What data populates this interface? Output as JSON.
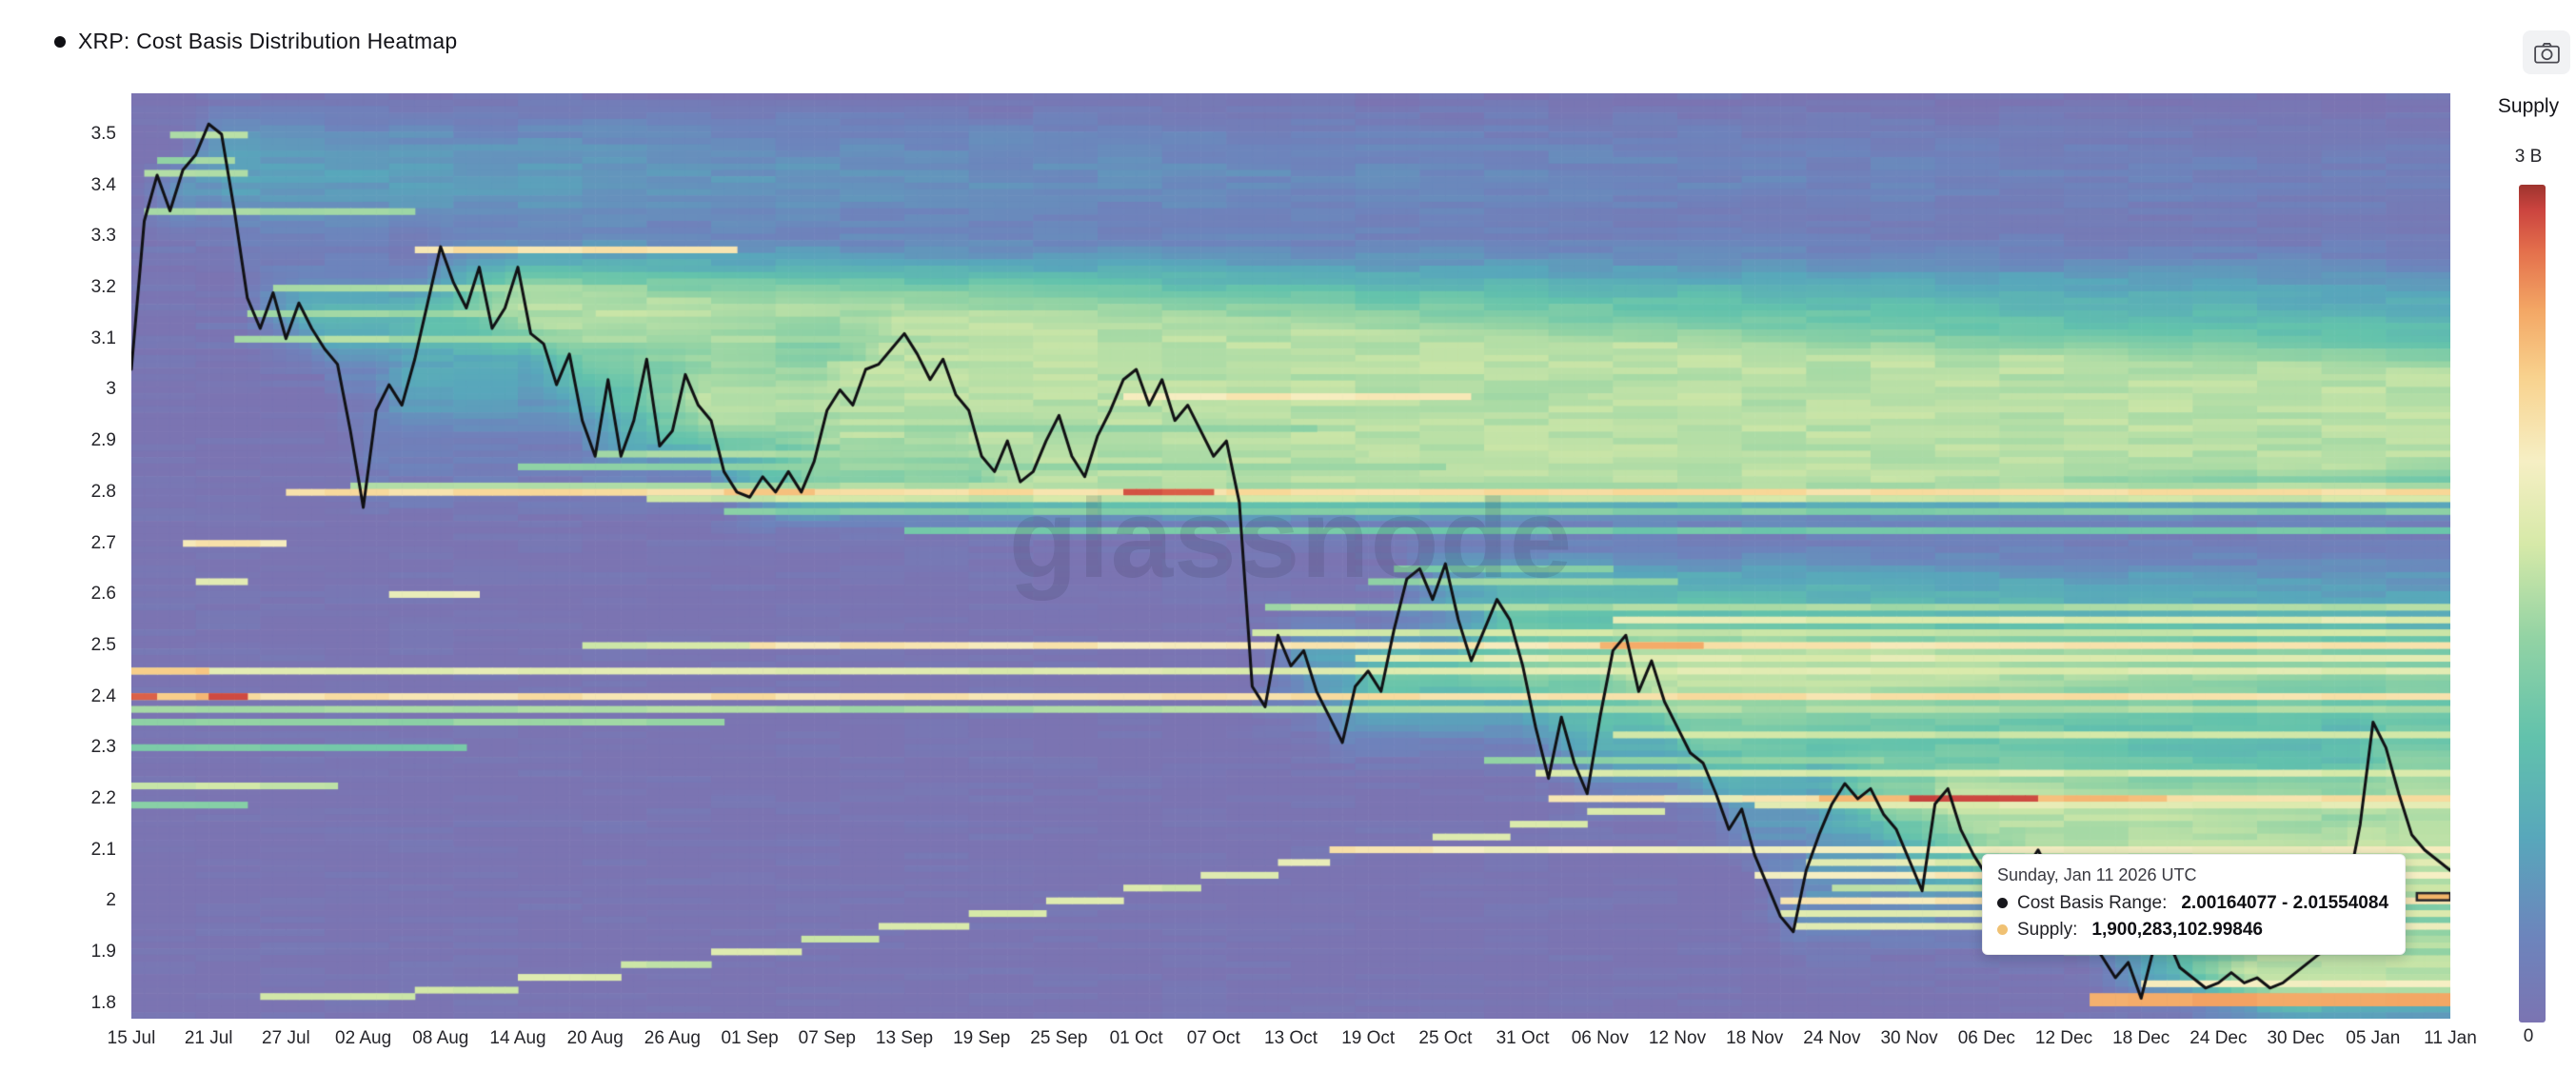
{
  "header": {
    "title": "XRP: Cost Basis Distribution Heatmap"
  },
  "icons": {
    "series_bullet": "●",
    "camera": "camera-icon",
    "cost_basis_bullet": "●",
    "supply_bullet": "●"
  },
  "legend": {
    "title": "Supply",
    "max_label": "3 B",
    "min_label": "0"
  },
  "tooltip": {
    "date": "Sunday, Jan 11 2026 UTC",
    "cost_basis_label": "Cost Basis Range:",
    "cost_basis_value": "2.00164077 - 2.01554084",
    "supply_label": "Supply:",
    "supply_value": "1,900,283,102.99846",
    "cost_dot_color": "#17171c",
    "supply_dot_color": "#f0c173"
  },
  "chart_data": {
    "type": "heatmap",
    "title": "XRP: Cost Basis Distribution Heatmap",
    "watermark": "glassnode",
    "xlabel": "",
    "ylabel": "",
    "legend_position": "right",
    "x_range_days": 180,
    "y_range": [
      1.77,
      3.58
    ],
    "x_ticks": [
      "15 Jul",
      "21 Jul",
      "27 Jul",
      "02 Aug",
      "08 Aug",
      "14 Aug",
      "20 Aug",
      "26 Aug",
      "01 Sep",
      "07 Sep",
      "13 Sep",
      "19 Sep",
      "25 Sep",
      "01 Oct",
      "07 Oct",
      "13 Oct",
      "19 Oct",
      "25 Oct",
      "31 Oct",
      "06 Nov",
      "12 Nov",
      "18 Nov",
      "24 Nov",
      "30 Nov",
      "06 Dec",
      "12 Dec",
      "18 Dec",
      "24 Dec",
      "30 Dec",
      "05 Jan",
      "11 Jan"
    ],
    "x_tick_interval_days": 6,
    "y_ticks": [
      "3.5",
      "3.4",
      "3.3",
      "3.2",
      "3.1",
      "3",
      "2.9",
      "2.8",
      "2.7",
      "2.6",
      "2.5",
      "2.4",
      "2.3",
      "2.2",
      "2.1",
      "2",
      "1.9",
      "1.8"
    ],
    "supply_scale_max": "3 B",
    "supply_scale_min": "0",
    "base_color": "#7b74b2",
    "colormap": [
      {
        "v": 0.0,
        "c": "#7b74b2"
      },
      {
        "v": 0.1,
        "c": "#6d84bc"
      },
      {
        "v": 0.22,
        "c": "#58a7bb"
      },
      {
        "v": 0.34,
        "c": "#62c2ac"
      },
      {
        "v": 0.46,
        "c": "#93d3a4"
      },
      {
        "v": 0.57,
        "c": "#d6e9a8"
      },
      {
        "v": 0.67,
        "c": "#f6efc4"
      },
      {
        "v": 0.77,
        "c": "#f8d28e"
      },
      {
        "v": 0.85,
        "c": "#f3a765"
      },
      {
        "v": 0.92,
        "c": "#e4704c"
      },
      {
        "v": 0.97,
        "c": "#cb443f"
      },
      {
        "v": 1.0,
        "c": "#9e342e"
      }
    ],
    "cloud": {
      "sigma": 0.045,
      "per_day": 0.05,
      "cap": 0.52,
      "decay": 0.994,
      "noise": 0.06
    },
    "price_line": {
      "name": "XRP price",
      "color": "#111114",
      "points": [
        [
          0,
          3.04
        ],
        [
          1,
          3.33
        ],
        [
          2,
          3.42
        ],
        [
          3,
          3.35
        ],
        [
          4,
          3.43
        ],
        [
          5,
          3.46
        ],
        [
          6,
          3.52
        ],
        [
          7,
          3.5
        ],
        [
          8,
          3.35
        ],
        [
          9,
          3.18
        ],
        [
          10,
          3.12
        ],
        [
          11,
          3.19
        ],
        [
          12,
          3.1
        ],
        [
          13,
          3.17
        ],
        [
          14,
          3.12
        ],
        [
          15,
          3.08
        ],
        [
          16,
          3.05
        ],
        [
          17,
          2.92
        ],
        [
          18,
          2.77
        ],
        [
          19,
          2.96
        ],
        [
          20,
          3.01
        ],
        [
          21,
          2.97
        ],
        [
          22,
          3.06
        ],
        [
          23,
          3.17
        ],
        [
          24,
          3.28
        ],
        [
          25,
          3.21
        ],
        [
          26,
          3.16
        ],
        [
          27,
          3.24
        ],
        [
          28,
          3.12
        ],
        [
          29,
          3.16
        ],
        [
          30,
          3.24
        ],
        [
          31,
          3.11
        ],
        [
          32,
          3.09
        ],
        [
          33,
          3.01
        ],
        [
          34,
          3.07
        ],
        [
          35,
          2.94
        ],
        [
          36,
          2.87
        ],
        [
          37,
          3.02
        ],
        [
          38,
          2.87
        ],
        [
          39,
          2.94
        ],
        [
          40,
          3.06
        ],
        [
          41,
          2.89
        ],
        [
          42,
          2.92
        ],
        [
          43,
          3.03
        ],
        [
          44,
          2.97
        ],
        [
          45,
          2.94
        ],
        [
          46,
          2.84
        ],
        [
          47,
          2.8
        ],
        [
          48,
          2.79
        ],
        [
          49,
          2.83
        ],
        [
          50,
          2.8
        ],
        [
          51,
          2.84
        ],
        [
          52,
          2.8
        ],
        [
          53,
          2.86
        ],
        [
          54,
          2.96
        ],
        [
          55,
          3.0
        ],
        [
          56,
          2.97
        ],
        [
          57,
          3.04
        ],
        [
          58,
          3.05
        ],
        [
          59,
          3.08
        ],
        [
          60,
          3.11
        ],
        [
          61,
          3.07
        ],
        [
          62,
          3.02
        ],
        [
          63,
          3.06
        ],
        [
          64,
          2.99
        ],
        [
          65,
          2.96
        ],
        [
          66,
          2.87
        ],
        [
          67,
          2.84
        ],
        [
          68,
          2.9
        ],
        [
          69,
          2.82
        ],
        [
          70,
          2.84
        ],
        [
          71,
          2.9
        ],
        [
          72,
          2.95
        ],
        [
          73,
          2.87
        ],
        [
          74,
          2.83
        ],
        [
          75,
          2.91
        ],
        [
          76,
          2.96
        ],
        [
          77,
          3.02
        ],
        [
          78,
          3.04
        ],
        [
          79,
          2.97
        ],
        [
          80,
          3.02
        ],
        [
          81,
          2.94
        ],
        [
          82,
          2.97
        ],
        [
          83,
          2.92
        ],
        [
          84,
          2.87
        ],
        [
          85,
          2.9
        ],
        [
          86,
          2.78
        ],
        [
          87,
          2.42
        ],
        [
          88,
          2.38
        ],
        [
          89,
          2.52
        ],
        [
          90,
          2.46
        ],
        [
          91,
          2.49
        ],
        [
          92,
          2.41
        ],
        [
          93,
          2.36
        ],
        [
          94,
          2.31
        ],
        [
          95,
          2.42
        ],
        [
          96,
          2.45
        ],
        [
          97,
          2.41
        ],
        [
          98,
          2.53
        ],
        [
          99,
          2.63
        ],
        [
          100,
          2.65
        ],
        [
          101,
          2.59
        ],
        [
          102,
          2.66
        ],
        [
          103,
          2.55
        ],
        [
          104,
          2.47
        ],
        [
          105,
          2.53
        ],
        [
          106,
          2.59
        ],
        [
          107,
          2.55
        ],
        [
          108,
          2.46
        ],
        [
          109,
          2.34
        ],
        [
          110,
          2.24
        ],
        [
          111,
          2.36
        ],
        [
          112,
          2.27
        ],
        [
          113,
          2.21
        ],
        [
          114,
          2.36
        ],
        [
          115,
          2.49
        ],
        [
          116,
          2.52
        ],
        [
          117,
          2.41
        ],
        [
          118,
          2.47
        ],
        [
          119,
          2.39
        ],
        [
          120,
          2.34
        ],
        [
          121,
          2.29
        ],
        [
          122,
          2.27
        ],
        [
          123,
          2.21
        ],
        [
          124,
          2.14
        ],
        [
          125,
          2.18
        ],
        [
          126,
          2.09
        ],
        [
          127,
          2.03
        ],
        [
          128,
          1.97
        ],
        [
          129,
          1.94
        ],
        [
          130,
          2.06
        ],
        [
          131,
          2.13
        ],
        [
          132,
          2.19
        ],
        [
          133,
          2.23
        ],
        [
          134,
          2.2
        ],
        [
          135,
          2.22
        ],
        [
          136,
          2.17
        ],
        [
          137,
          2.14
        ],
        [
          138,
          2.08
        ],
        [
          139,
          2.02
        ],
        [
          140,
          2.19
        ],
        [
          141,
          2.22
        ],
        [
          142,
          2.14
        ],
        [
          143,
          2.09
        ],
        [
          144,
          2.05
        ],
        [
          145,
          2.08
        ],
        [
          146,
          2.02
        ],
        [
          147,
          2.06
        ],
        [
          148,
          2.1
        ],
        [
          149,
          2.05
        ],
        [
          150,
          2.01
        ],
        [
          151,
          1.97
        ],
        [
          152,
          1.93
        ],
        [
          153,
          1.89
        ],
        [
          154,
          1.85
        ],
        [
          155,
          1.88
        ],
        [
          156,
          1.81
        ],
        [
          157,
          1.91
        ],
        [
          158,
          1.93
        ],
        [
          159,
          1.87
        ],
        [
          160,
          1.85
        ],
        [
          161,
          1.83
        ],
        [
          162,
          1.84
        ],
        [
          163,
          1.86
        ],
        [
          164,
          1.84
        ],
        [
          165,
          1.85
        ],
        [
          166,
          1.83
        ],
        [
          167,
          1.84
        ],
        [
          168,
          1.86
        ],
        [
          169,
          1.88
        ],
        [
          170,
          1.9
        ],
        [
          171,
          1.95
        ],
        [
          172,
          2.02
        ],
        [
          173,
          2.15
        ],
        [
          174,
          2.35
        ],
        [
          175,
          2.3
        ],
        [
          176,
          2.21
        ],
        [
          177,
          2.13
        ],
        [
          178,
          2.1
        ],
        [
          179,
          2.08
        ],
        [
          180,
          2.06
        ]
      ]
    },
    "bands": [
      {
        "p": 3.5,
        "d0": 3,
        "d1": 9,
        "v": 0.5
      },
      {
        "p": 3.45,
        "d0": 2,
        "d1": 8,
        "v": 0.48
      },
      {
        "p": 3.425,
        "d0": 1,
        "d1": 9,
        "v": 0.52
      },
      {
        "p": 3.35,
        "d0": 1,
        "d1": 22,
        "v": 0.48
      },
      {
        "p": 3.27,
        "d0": 22,
        "d1": 47,
        "v": 0.72
      },
      {
        "p": 3.2,
        "d0": 11,
        "d1": 40,
        "v": 0.5
      },
      {
        "p": 3.15,
        "d0": 9,
        "d1": 36,
        "v": 0.48
      },
      {
        "p": 3.1,
        "d0": 8,
        "d1": 62,
        "v": 0.5
      },
      {
        "p": 3.05,
        "d0": 54,
        "d1": 66,
        "v": 0.52
      },
      {
        "p": 2.99,
        "d0": 77,
        "d1": 104,
        "v": 0.7
      },
      {
        "p": 2.99,
        "d0": 104,
        "d1": 113,
        "v": 0.5
      },
      {
        "p": 2.95,
        "d0": 49,
        "d1": 82,
        "v": 0.5
      },
      {
        "p": 2.925,
        "d0": 53,
        "d1": 92,
        "v": 0.46
      },
      {
        "p": 2.875,
        "d0": 36,
        "d1": 96,
        "v": 0.5
      },
      {
        "p": 2.85,
        "d0": 30,
        "d1": 102,
        "v": 0.46
      },
      {
        "p": 2.8125,
        "d0": 17,
        "d1": 181,
        "v": 0.5
      },
      {
        "p": 2.8,
        "d0": 12,
        "d1": 181,
        "v": 0.73
      },
      {
        "p": 2.8,
        "d0": 46,
        "d1": 53,
        "v": 0.8
      },
      {
        "p": 2.8,
        "d0": 77,
        "d1": 84,
        "v": 0.96
      },
      {
        "p": 2.7875,
        "d0": 40,
        "d1": 181,
        "v": 0.55
      },
      {
        "p": 2.765,
        "d0": 46,
        "d1": 181,
        "v": 0.42
      },
      {
        "p": 2.725,
        "d0": 60,
        "d1": 181,
        "v": 0.38
      },
      {
        "p": 2.7,
        "d0": 4,
        "d1": 12,
        "v": 0.7
      },
      {
        "p": 2.63,
        "d0": 5,
        "d1": 9,
        "v": 0.62
      },
      {
        "p": 2.6,
        "d0": 20,
        "d1": 27,
        "v": 0.65
      },
      {
        "p": 2.625,
        "d0": 96,
        "d1": 120,
        "v": 0.46
      },
      {
        "p": 2.65,
        "d0": 98,
        "d1": 115,
        "v": 0.42
      },
      {
        "p": 2.575,
        "d0": 88,
        "d1": 181,
        "v": 0.5
      },
      {
        "p": 2.55,
        "d0": 115,
        "d1": 181,
        "v": 0.6
      },
      {
        "p": 2.525,
        "d0": 87,
        "d1": 181,
        "v": 0.55
      },
      {
        "p": 2.5,
        "d0": 35,
        "d1": 48,
        "v": 0.55
      },
      {
        "p": 2.5,
        "d0": 48,
        "d1": 181,
        "v": 0.7
      },
      {
        "p": 2.5,
        "d0": 114,
        "d1": 122,
        "v": 0.82
      },
      {
        "p": 2.475,
        "d0": 95,
        "d1": 181,
        "v": 0.6
      },
      {
        "p": 2.45,
        "d0": 0,
        "d1": 181,
        "v": 0.6
      },
      {
        "p": 2.45,
        "d0": 0,
        "d1": 6,
        "v": 0.78
      },
      {
        "p": 2.4,
        "d0": 0,
        "d1": 181,
        "v": 0.72
      },
      {
        "p": 2.4,
        "d0": 0,
        "d1": 2,
        "v": 0.96
      },
      {
        "p": 2.4,
        "d0": 2,
        "d1": 6,
        "v": 0.8
      },
      {
        "p": 2.4,
        "d0": 6,
        "d1": 9,
        "v": 0.94
      },
      {
        "p": 2.37,
        "d0": 0,
        "d1": 181,
        "v": 0.5
      },
      {
        "p": 2.35,
        "d0": 0,
        "d1": 46,
        "v": 0.46
      },
      {
        "p": 2.325,
        "d0": 115,
        "d1": 181,
        "v": 0.55
      },
      {
        "p": 2.3,
        "d0": 0,
        "d1": 26,
        "v": 0.4
      },
      {
        "p": 2.275,
        "d0": 105,
        "d1": 136,
        "v": 0.45
      },
      {
        "p": 2.25,
        "d0": 109,
        "d1": 181,
        "v": 0.58
      },
      {
        "p": 2.22,
        "d0": 0,
        "d1": 16,
        "v": 0.55
      },
      {
        "p": 2.19,
        "d0": 0,
        "d1": 9,
        "v": 0.45
      },
      {
        "p": 2.195,
        "d0": 110,
        "d1": 131,
        "v": 0.7
      },
      {
        "p": 2.195,
        "d0": 131,
        "d1": 138,
        "v": 0.8
      },
      {
        "p": 2.195,
        "d0": 138,
        "d1": 148,
        "v": 0.96
      },
      {
        "p": 2.195,
        "d0": 148,
        "d1": 158,
        "v": 0.8
      },
      {
        "p": 2.195,
        "d0": 158,
        "d1": 181,
        "v": 0.72
      },
      {
        "p": 2.1825,
        "d0": 126,
        "d1": 181,
        "v": 0.6
      },
      {
        "p": 2.1,
        "d0": 101,
        "d1": 181,
        "v": 0.66
      },
      {
        "p": 2.075,
        "d0": 130,
        "d1": 181,
        "v": 0.6
      },
      {
        "p": 2.05,
        "d0": 126,
        "d1": 181,
        "v": 0.68
      },
      {
        "p": 2.025,
        "d0": 132,
        "d1": 181,
        "v": 0.55
      },
      {
        "p": 2.0,
        "d0": 128,
        "d1": 181,
        "v": 0.7
      },
      {
        "p": 1.975,
        "d0": 128,
        "d1": 181,
        "v": 0.58
      },
      {
        "p": 1.95,
        "d0": 129,
        "d1": 181,
        "v": 0.62
      },
      {
        "p": 1.92,
        "d0": 150,
        "d1": 181,
        "v": 0.52
      },
      {
        "p": 1.9,
        "d0": 150,
        "d1": 181,
        "v": 0.48
      },
      {
        "p": 1.8125,
        "d0": 152,
        "d1": 181,
        "v": 0.84,
        "rows": 2
      },
      {
        "p": 1.8375,
        "d0": 156,
        "d1": 181,
        "v": 0.68
      },
      {
        "p": 1.81,
        "d0": 10,
        "d1": 22,
        "v": 0.56
      },
      {
        "p": 1.83,
        "d0": 22,
        "d1": 30,
        "v": 0.55
      },
      {
        "p": 1.85,
        "d0": 30,
        "d1": 38,
        "v": 0.6
      },
      {
        "p": 1.875,
        "d0": 38,
        "d1": 45,
        "v": 0.55
      },
      {
        "p": 1.9,
        "d0": 45,
        "d1": 52,
        "v": 0.6
      },
      {
        "p": 1.925,
        "d0": 52,
        "d1": 58,
        "v": 0.55
      },
      {
        "p": 1.95,
        "d0": 58,
        "d1": 65,
        "v": 0.6
      },
      {
        "p": 1.975,
        "d0": 65,
        "d1": 71,
        "v": 0.56
      },
      {
        "p": 2.0,
        "d0": 71,
        "d1": 77,
        "v": 0.6
      },
      {
        "p": 2.025,
        "d0": 77,
        "d1": 83,
        "v": 0.58
      },
      {
        "p": 2.05,
        "d0": 83,
        "d1": 89,
        "v": 0.6
      },
      {
        "p": 2.075,
        "d0": 89,
        "d1": 93,
        "v": 0.62
      },
      {
        "p": 2.1,
        "d0": 93,
        "d1": 101,
        "v": 0.7
      },
      {
        "p": 2.125,
        "d0": 101,
        "d1": 107,
        "v": 0.58
      },
      {
        "p": 2.15,
        "d0": 107,
        "d1": 113,
        "v": 0.58
      },
      {
        "p": 2.175,
        "d0": 113,
        "d1": 119,
        "v": 0.58
      },
      {
        "p": 2.2,
        "d0": 119,
        "d1": 125,
        "v": 0.62
      }
    ],
    "hover_cell": {
      "d0": 177.4,
      "d1": 180,
      "p0": 2.00164077,
      "p1": 2.01554084,
      "fill": "#f2b469",
      "stroke": "#26262b"
    }
  }
}
